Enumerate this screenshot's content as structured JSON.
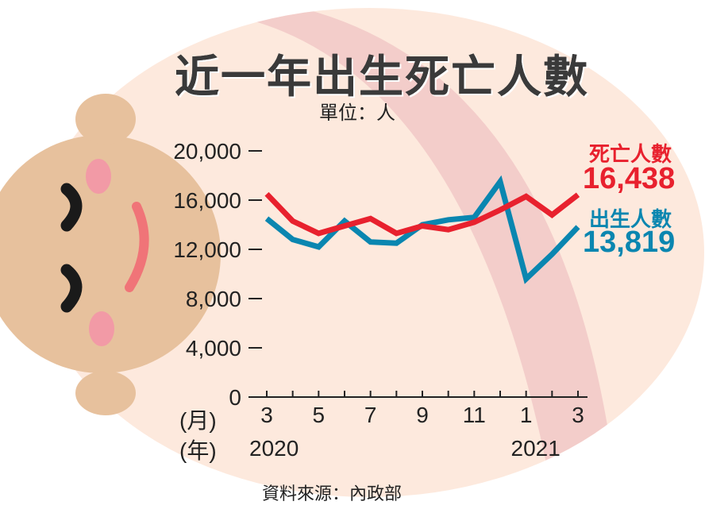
{
  "title": "近一年出生死亡人數",
  "unit": "單位：人",
  "source": "資料來源：內政部",
  "x_caption_month": "(月)",
  "x_caption_year": "(年)",
  "year_labels": [
    "2020",
    "2021"
  ],
  "deaths": {
    "name": "死亡人數",
    "latest": "16,438"
  },
  "births": {
    "name": "出生人數",
    "latest": "13,819"
  },
  "colors": {
    "deaths": "#e8212e",
    "births": "#0a86b0",
    "background_blob": "#fde9dd",
    "band": "#f3cdca",
    "face": "#e7c19d"
  },
  "chart_data": {
    "type": "line",
    "title": "近一年出生死亡人數",
    "x": [
      "3",
      "4",
      "5",
      "6",
      "7",
      "8",
      "9",
      "10",
      "11",
      "12",
      "1",
      "2",
      "3"
    ],
    "x_tick_labels": [
      "3",
      "5",
      "7",
      "9",
      "11",
      "1",
      "3"
    ],
    "y_tick_labels": [
      "0",
      "4,000",
      "8,000",
      "12,000",
      "16,000",
      "20,000"
    ],
    "ylim": [
      0,
      20000
    ],
    "series": [
      {
        "name": "死亡人數",
        "values": [
          16500,
          14300,
          13300,
          13900,
          14500,
          13300,
          13900,
          13600,
          14200,
          15200,
          16300,
          14800,
          16438
        ]
      },
      {
        "name": "出生人數",
        "values": [
          14500,
          12800,
          12200,
          14300,
          12600,
          12500,
          14000,
          14400,
          14600,
          17500,
          9600,
          11600,
          13819
        ]
      }
    ],
    "grid": false
  }
}
